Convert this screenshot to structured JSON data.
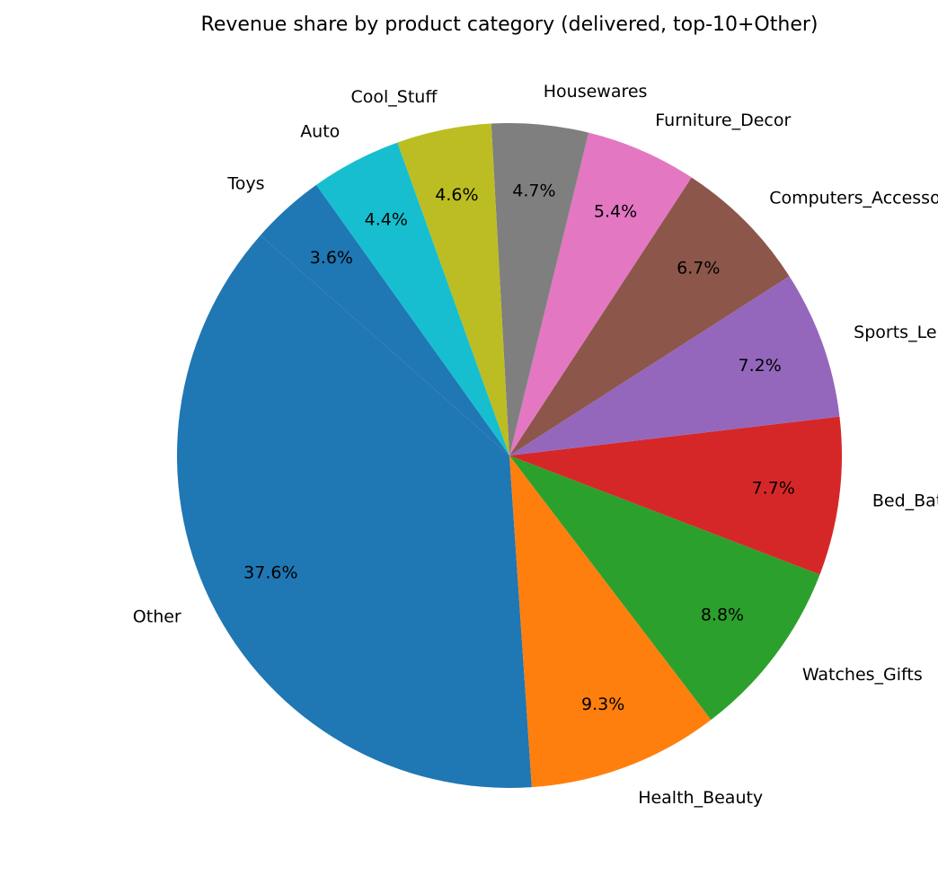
{
  "chart_data": {
    "type": "pie",
    "title": "Revenue share by product category (delivered, top-10+Other)",
    "start_angle_deg": 138.5,
    "direction": "counterclockwise",
    "slices": [
      {
        "label": "Other",
        "value": 37.6,
        "pct_label": "37.6%",
        "color": "#1f77b4"
      },
      {
        "label": "Health_Beauty",
        "value": 9.3,
        "pct_label": "9.3%",
        "color": "#ff7f0e"
      },
      {
        "label": "Watches_Gifts",
        "value": 8.8,
        "pct_label": "8.8%",
        "color": "#2ca02c"
      },
      {
        "label": "Bed_Bath_Table",
        "value": 7.7,
        "pct_label": "7.7%",
        "color": "#d62728"
      },
      {
        "label": "Sports_Leisure",
        "value": 7.2,
        "pct_label": "7.2%",
        "color": "#9467bd"
      },
      {
        "label": "Computers_Accessories",
        "value": 6.7,
        "pct_label": "6.7%",
        "color": "#8c564b"
      },
      {
        "label": "Furniture_Decor",
        "value": 5.4,
        "pct_label": "5.4%",
        "color": "#e377c2"
      },
      {
        "label": "Housewares",
        "value": 4.7,
        "pct_label": "4.7%",
        "color": "#7f7f7f"
      },
      {
        "label": "Cool_Stuff",
        "value": 4.6,
        "pct_label": "4.6%",
        "color": "#bcbd22"
      },
      {
        "label": "Auto",
        "value": 4.4,
        "pct_label": "4.4%",
        "color": "#17becf"
      },
      {
        "label": "Toys",
        "value": 3.6,
        "pct_label": "3.6%",
        "color": "#1f77b4"
      }
    ]
  }
}
